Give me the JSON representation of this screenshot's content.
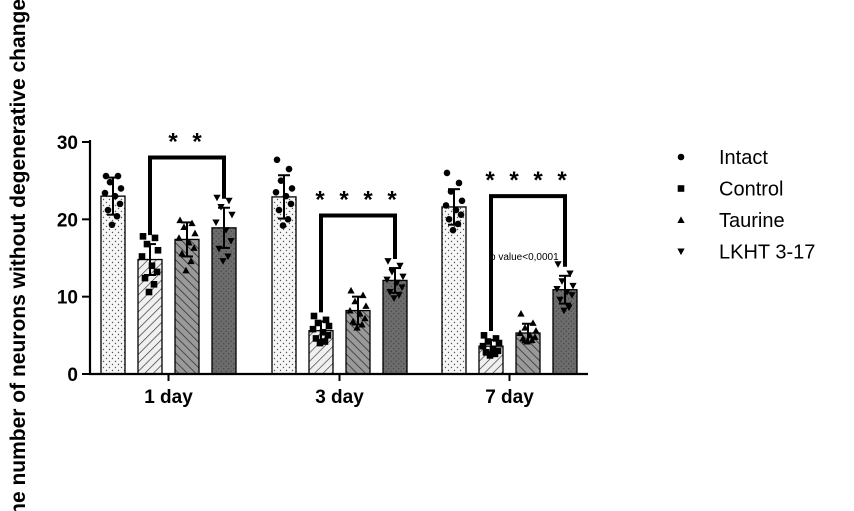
{
  "chart_data": {
    "type": "bar",
    "ylabel": "The number of neurons without degenerative changes",
    "ylim": [
      0,
      30
    ],
    "yticks": [
      0,
      10,
      20,
      30
    ],
    "categories": [
      "1 day",
      "3 day",
      "7 day"
    ],
    "legend_position": "right",
    "series": [
      {
        "name": "Intact",
        "marker": "circle",
        "fill": "dots-light",
        "color": "#f2f2f2",
        "values": [
          23.0,
          22.9,
          21.6
        ],
        "sd": [
          2.4,
          2.8,
          2.3
        ],
        "points": [
          [
            25.6,
            25.6,
            24.8,
            24.0,
            23.4,
            23.0,
            22.0,
            21.2,
            20.4,
            19.3
          ],
          [
            27.7,
            26.5,
            25.0,
            24.0,
            23.5,
            23.0,
            22.0,
            21.2,
            20.0,
            19.2
          ],
          [
            26.0,
            24.7,
            23.6,
            22.4,
            21.8,
            21.2,
            20.6,
            20.0,
            19.4,
            18.6
          ]
        ]
      },
      {
        "name": "Control",
        "marker": "square",
        "fill": "hatch-light",
        "color": "#e8e8e8",
        "values": [
          14.8,
          5.6,
          3.6
        ],
        "sd": [
          2.0,
          1.2,
          0.8
        ],
        "points": [
          [
            17.8,
            17.6,
            16.8,
            16.0,
            15.2,
            14.0,
            13.2,
            12.4,
            11.6,
            10.6
          ],
          [
            7.5,
            7.0,
            6.6,
            6.2,
            5.8,
            5.4,
            5.0,
            4.6,
            4.2,
            4.0
          ],
          [
            5.0,
            4.6,
            4.2,
            4.0,
            3.6,
            3.2,
            3.0,
            2.8,
            2.6,
            2.4
          ]
        ]
      },
      {
        "name": "Taurine",
        "marker": "triangle-up",
        "fill": "hatch-dark",
        "color": "#b0b0b0",
        "values": [
          17.4,
          8.2,
          5.3
        ],
        "sd": [
          2.2,
          1.8,
          1.2
        ],
        "points": [
          [
            19.9,
            19.5,
            19.0,
            18.2,
            17.6,
            17.0,
            16.3,
            15.6,
            14.6,
            13.4
          ],
          [
            10.8,
            10.2,
            9.4,
            8.8,
            8.2,
            7.8,
            7.2,
            6.8,
            6.4,
            6.0
          ],
          [
            7.8,
            6.6,
            6.0,
            5.6,
            5.3,
            5.0,
            4.8,
            4.6,
            4.4,
            4.2
          ]
        ]
      },
      {
        "name": "LKHT 3-17",
        "marker": "triangle-down",
        "fill": "dots-dark",
        "color": "#6a6a6a",
        "values": [
          18.9,
          12.1,
          10.9
        ],
        "sd": [
          2.6,
          1.6,
          1.8
        ],
        "points": [
          [
            22.8,
            22.4,
            21.6,
            20.6,
            19.6,
            18.6,
            17.2,
            16.2,
            15.2,
            14.6
          ],
          [
            14.6,
            14.0,
            13.2,
            12.6,
            12.2,
            11.8,
            11.2,
            10.6,
            10.2,
            9.8
          ],
          [
            14.2,
            13.0,
            12.0,
            11.4,
            11.0,
            10.6,
            10.2,
            9.6,
            8.6,
            8.2
          ]
        ]
      }
    ],
    "significance": [
      {
        "category": "1 day",
        "from_series": "Control",
        "to_series": "LKHT 3-17",
        "label": "* *",
        "bracket_y": 28.0
      },
      {
        "category": "3 day",
        "from_series": "Control",
        "to_series": "LKHT 3-17",
        "label": "* * * *",
        "bracket_y": 20.5
      },
      {
        "category": "7 day",
        "from_series": "Control",
        "to_series": "LKHT 3-17",
        "label": "* * * *",
        "bracket_y": 23.0
      }
    ],
    "annotation": "p value<0,0001"
  }
}
